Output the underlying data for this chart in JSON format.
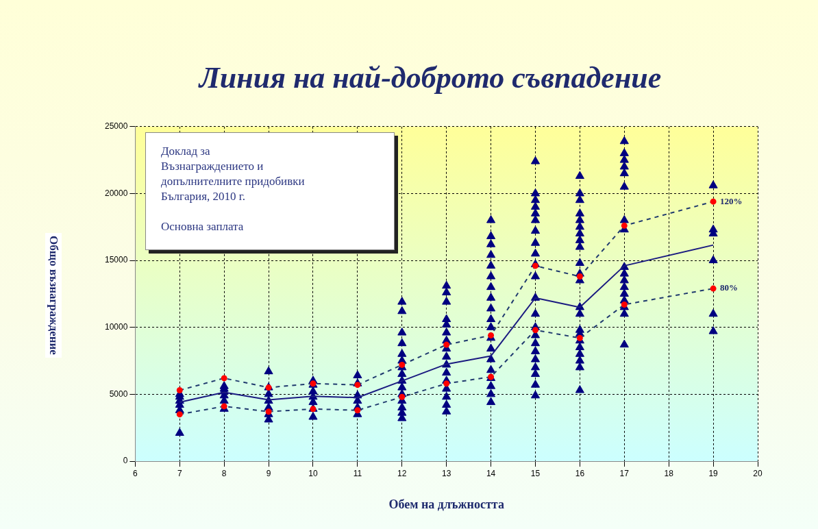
{
  "chart_data": {
    "type": "scatter",
    "title": "Линия на най-доброто съвпадение",
    "xlabel": "Обем на длъжността",
    "ylabel": "Общо възнаграждение",
    "annotations": [
      "Доклад за\nВъзнаграждението и\nдопълнителните придобивки\nБългария, 2010 г.\n\nОсновна заплата"
    ],
    "xlim": [
      6,
      20
    ],
    "xticks": [
      6,
      7,
      8,
      9,
      10,
      11,
      12,
      13,
      14,
      15,
      16,
      17,
      18,
      19,
      20
    ],
    "ylim": [
      0,
      25000
    ],
    "yticks": [
      0,
      5000,
      10000,
      15000,
      20000,
      25000
    ],
    "grid": true,
    "legend": false,
    "marker": "triangle",
    "series": [
      {
        "color": "#000080",
        "x": [
          7,
          7,
          7,
          7,
          7,
          7,
          8,
          8,
          8,
          8,
          8,
          8,
          9,
          9,
          9,
          9,
          9,
          9,
          9,
          10,
          10,
          10,
          10,
          10,
          10,
          10,
          11,
          11,
          11,
          11,
          11,
          11,
          12,
          12,
          12,
          12,
          12,
          12,
          12,
          12,
          12,
          12,
          12,
          12,
          12,
          12,
          12,
          13,
          13,
          13,
          13,
          13,
          13,
          13,
          13,
          13,
          13,
          13,
          13,
          13,
          13,
          13,
          13,
          14,
          14,
          14,
          14,
          14,
          14,
          14,
          14,
          14,
          14,
          14,
          14,
          14,
          14,
          14,
          14,
          14,
          14,
          14,
          15,
          15,
          15,
          15,
          15,
          15,
          15,
          15,
          15,
          15,
          15,
          15,
          15,
          15,
          15,
          15,
          15,
          15,
          15,
          15,
          15,
          15,
          16,
          16,
          16,
          16,
          16,
          16,
          16,
          16,
          16,
          16,
          16,
          16,
          16,
          16,
          16,
          16,
          16,
          16,
          16,
          16,
          16,
          16,
          17,
          17,
          17,
          17,
          17,
          17,
          17,
          17,
          17,
          17,
          17,
          17,
          17,
          17,
          17,
          17,
          17,
          19,
          19,
          19,
          19,
          19,
          19
        ],
        "values": [
          2100,
          3800,
          4200,
          4500,
          4800,
          5000,
          3900,
          4500,
          4900,
          5200,
          5400,
          5600,
          3100,
          3500,
          4000,
          4500,
          5000,
          5500,
          6700,
          3300,
          3900,
          4400,
          4800,
          5200,
          5700,
          6000,
          3500,
          4000,
          4500,
          4900,
          5800,
          6400,
          3200,
          3600,
          4000,
          4500,
          5000,
          5500,
          6000,
          6500,
          7000,
          7500,
          8000,
          8800,
          9600,
          11200,
          11900,
          3700,
          4200,
          4800,
          5400,
          6000,
          6600,
          7200,
          7800,
          8400,
          9000,
          9600,
          10200,
          10600,
          11900,
          12600,
          13100,
          4400,
          5000,
          5600,
          6200,
          6800,
          7600,
          8400,
          9200,
          10000,
          10600,
          11400,
          12200,
          13000,
          13800,
          14600,
          15400,
          16200,
          16800,
          18000,
          4900,
          5700,
          6500,
          7000,
          7600,
          8200,
          8800,
          9400,
          10000,
          11000,
          12200,
          13800,
          14700,
          15500,
          16300,
          17200,
          18000,
          18500,
          19000,
          19500,
          20000,
          22400,
          5300,
          7000,
          7500,
          8000,
          8500,
          9000,
          9500,
          9800,
          11000,
          11500,
          13500,
          14000,
          14800,
          16000,
          16500,
          17000,
          17500,
          18000,
          18500,
          19500,
          20000,
          21300,
          8700,
          11000,
          11500,
          12000,
          12500,
          13000,
          13500,
          14000,
          14500,
          17300,
          18000,
          20500,
          21500,
          22000,
          22500,
          23000,
          23900,
          9700,
          11000,
          15000,
          17000,
          17300,
          20600
        ]
      },
      {
        "type": "line",
        "color": "#1a1a80",
        "marker": "none",
        "line_style": "solid",
        "x": [
          7,
          8,
          9,
          10,
          11,
          12,
          13,
          14,
          15,
          16,
          17,
          19
        ],
        "values": [
          4400,
          5150,
          4580,
          4850,
          4750,
          6000,
          7250,
          7860,
          12200,
          11500,
          14600,
          16150
        ]
      },
      {
        "type": "line",
        "name": "120%",
        "color": "#1f3a6e",
        "colors": [
          "#ff0000",
          "#ff0000",
          "#ff0000",
          "#ff0000",
          "#ff0000",
          "#ff0000",
          "#ff0000",
          "#ff0000",
          "#ff0000",
          "#ff0000",
          "#ff0000",
          "#ff0000"
        ],
        "marker": "circle",
        "line_style": "dashed",
        "x": [
          7,
          8,
          9,
          10,
          11,
          12,
          13,
          14,
          15,
          16,
          17,
          19
        ],
        "values": [
          5300,
          6200,
          5500,
          5800,
          5700,
          7200,
          8700,
          9400,
          14600,
          13800,
          17600,
          19400
        ]
      },
      {
        "type": "line",
        "name": "80%",
        "color": "#1f3a6e",
        "colors": [
          "#ff0000",
          "#ff0000",
          "#ff0000",
          "#ff0000",
          "#ff0000",
          "#ff0000",
          "#ff0000",
          "#ff0000",
          "#ff0000",
          "#ff0000",
          "#ff0000",
          "#ff0000"
        ],
        "marker": "circle",
        "line_style": "dashed",
        "x": [
          7,
          8,
          9,
          10,
          11,
          12,
          13,
          14,
          15,
          16,
          17,
          19
        ],
        "values": [
          3500,
          4100,
          3700,
          3900,
          3800,
          4800,
          5800,
          6300,
          9800,
          9200,
          11700,
          12900
        ]
      }
    ]
  }
}
